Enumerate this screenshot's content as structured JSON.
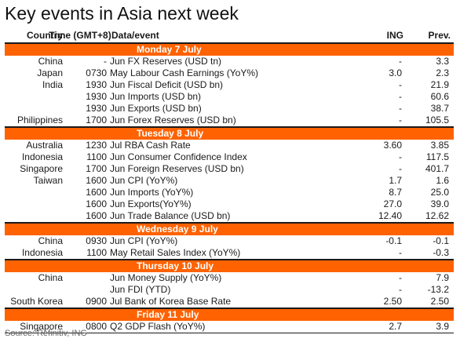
{
  "title": "Key events in Asia next week",
  "columns": {
    "country": "Country",
    "time": "Time (GMT+8)",
    "event": "Data/event",
    "ing": "ING",
    "prev": "Prev."
  },
  "days": [
    {
      "label": "Monday 7 July",
      "rows": [
        {
          "country": "China",
          "time": "-",
          "event": "Jun FX Reserves (USD tn)",
          "ing": "-",
          "prev": "3.3"
        },
        {
          "country": "Japan",
          "time": "0730",
          "event": "May Labour Cash Earnings (YoY%)",
          "ing": "3.0",
          "prev": "2.3"
        },
        {
          "country": "India",
          "time": "1930",
          "event": "Jun Fiscal Deficit (USD bn)",
          "ing": "-",
          "prev": "21.9"
        },
        {
          "country": "",
          "time": "1930",
          "event": "Jun Imports (USD bn)",
          "ing": "-",
          "prev": "60.6"
        },
        {
          "country": "",
          "time": "1930",
          "event": "Jun Exports (USD bn)",
          "ing": "-",
          "prev": "38.7"
        },
        {
          "country": "Philippines",
          "time": "1700",
          "event": "Jun Forex Reserves (USD bn)",
          "ing": "-",
          "prev": "105.5"
        }
      ]
    },
    {
      "label": "Tuesday 8 July",
      "rows": [
        {
          "country": "Australia",
          "time": "1230",
          "event": "Jul RBA Cash Rate",
          "ing": "3.60",
          "prev": "3.85"
        },
        {
          "country": "Indonesia",
          "time": "1100",
          "event": "Jun Consumer Confidence Index",
          "ing": "-",
          "prev": "117.5"
        },
        {
          "country": "Singapore",
          "time": "1700",
          "event": "Jun Foreign Reserves (USD bn)",
          "ing": "-",
          "prev": "401.7"
        },
        {
          "country": "Taiwan",
          "time": "1600",
          "event": "Jun CPI (YoY%)",
          "ing": "1.7",
          "prev": "1.6"
        },
        {
          "country": "",
          "time": "1600",
          "event": "Jun Imports (YoY%)",
          "ing": "8.7",
          "prev": "25.0"
        },
        {
          "country": "",
          "time": "1600",
          "event": "Jun Exports(YoY%)",
          "ing": "27.0",
          "prev": "39.0"
        },
        {
          "country": "",
          "time": "1600",
          "event": "Jun Trade Balance (USD bn)",
          "ing": "12.40",
          "prev": "12.62"
        }
      ]
    },
    {
      "label": "Wednesday 9 July",
      "rows": [
        {
          "country": "China",
          "time": "0930",
          "event": "Jun CPI (YoY%)",
          "ing": "-0.1",
          "prev": "-0.1"
        },
        {
          "country": "Indonesia",
          "time": "1100",
          "event": "May Retail Sales Index (YoY%)",
          "ing": "-",
          "prev": "-0.3"
        }
      ]
    },
    {
      "label": "Thursday 10 July",
      "rows": [
        {
          "country": "China",
          "time": "",
          "event": "Jun Money Supply (YoY%)",
          "ing": "-",
          "prev": "7.9"
        },
        {
          "country": "",
          "time": "",
          "event": "Jun FDI (YTD)",
          "ing": "-",
          "prev": "-13.2"
        },
        {
          "country": "South Korea",
          "time": "0900",
          "event": "Jul Bank of Korea Base Rate",
          "ing": "2.50",
          "prev": "2.50"
        }
      ]
    },
    {
      "label": "Friday 11 July",
      "rows": [
        {
          "country": "Singapore",
          "time": "0800",
          "event": "Q2 GDP Flash (YoY%)",
          "ing": "2.7",
          "prev": "3.9"
        }
      ]
    }
  ],
  "source": "Source: Refinitiv, ING",
  "colors": {
    "band": "#ff6200",
    "band_text": "#ffffff",
    "text": "#1a1a1a"
  }
}
